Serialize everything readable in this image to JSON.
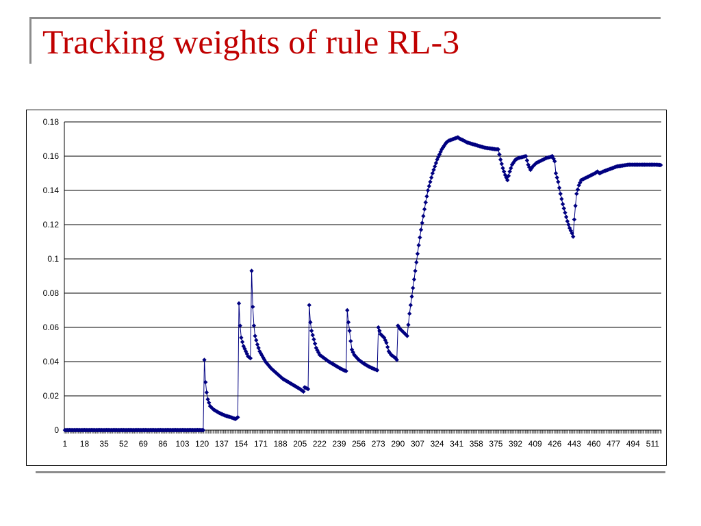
{
  "slide": {
    "title": "Tracking weights of  rule RL-3"
  },
  "colors": {
    "title": "#c00000",
    "series": "#000080",
    "gridlines": "#000000",
    "frame": "#8c8c8c"
  },
  "chart_data": {
    "type": "line",
    "title": "",
    "xlabel": "",
    "ylabel": "",
    "marker": "diamond",
    "grid": "horizontal",
    "legend": "none",
    "n_points": 518,
    "xlim": [
      1,
      518
    ],
    "ylim": [
      0,
      0.18
    ],
    "y_ticks": [
      "0",
      "0.02",
      "0.04",
      "0.06",
      "0.08",
      "0.1",
      "0.12",
      "0.14",
      "0.16",
      "0.18"
    ],
    "y_tick_values": [
      0,
      0.02,
      0.04,
      0.06,
      0.08,
      0.1,
      0.12,
      0.14,
      0.16,
      0.18
    ],
    "x_tick_labels": [
      "1",
      "18",
      "35",
      "52",
      "69",
      "86",
      "103",
      "120",
      "137",
      "154",
      "171",
      "188",
      "205",
      "222",
      "239",
      "256",
      "273",
      "290",
      "307",
      "324",
      "341",
      "358",
      "375",
      "392",
      "409",
      "426",
      "443",
      "460",
      "477",
      "494",
      "511"
    ],
    "series_points": [
      [
        1,
        0
      ],
      [
        121,
        0
      ],
      [
        122,
        0.041
      ],
      [
        123,
        0.028
      ],
      [
        124,
        0.022
      ],
      [
        125,
        0.018
      ],
      [
        127,
        0.014
      ],
      [
        130,
        0.012
      ],
      [
        135,
        0.01
      ],
      [
        140,
        0.0085
      ],
      [
        145,
        0.0075
      ],
      [
        149,
        0.0065
      ],
      [
        151,
        0.0075
      ],
      [
        152,
        0.074
      ],
      [
        153,
        0.061
      ],
      [
        154,
        0.054
      ],
      [
        156,
        0.049
      ],
      [
        158,
        0.046
      ],
      [
        160,
        0.043
      ],
      [
        162,
        0.042
      ],
      [
        163,
        0.093
      ],
      [
        164,
        0.072
      ],
      [
        165,
        0.061
      ],
      [
        166,
        0.055
      ],
      [
        168,
        0.05
      ],
      [
        170,
        0.046
      ],
      [
        175,
        0.04
      ],
      [
        180,
        0.036
      ],
      [
        185,
        0.033
      ],
      [
        190,
        0.03
      ],
      [
        195,
        0.028
      ],
      [
        200,
        0.026
      ],
      [
        205,
        0.024
      ],
      [
        208,
        0.0225
      ],
      [
        209,
        0.025
      ],
      [
        212,
        0.024
      ],
      [
        213,
        0.073
      ],
      [
        214,
        0.063
      ],
      [
        215,
        0.058
      ],
      [
        217,
        0.053
      ],
      [
        219,
        0.048
      ],
      [
        222,
        0.044
      ],
      [
        226,
        0.042
      ],
      [
        230,
        0.04
      ],
      [
        235,
        0.038
      ],
      [
        240,
        0.036
      ],
      [
        243,
        0.035
      ],
      [
        245,
        0.0345
      ],
      [
        246,
        0.07
      ],
      [
        247,
        0.063
      ],
      [
        248,
        0.058
      ],
      [
        249,
        0.052
      ],
      [
        250,
        0.047
      ],
      [
        252,
        0.044
      ],
      [
        256,
        0.041
      ],
      [
        260,
        0.039
      ],
      [
        265,
        0.037
      ],
      [
        270,
        0.0355
      ],
      [
        272,
        0.035
      ],
      [
        273,
        0.06
      ],
      [
        275,
        0.056
      ],
      [
        278,
        0.054
      ],
      [
        280,
        0.051
      ],
      [
        282,
        0.046
      ],
      [
        284,
        0.044
      ],
      [
        286,
        0.043
      ],
      [
        288,
        0.042
      ],
      [
        289,
        0.041
      ],
      [
        290,
        0.061
      ],
      [
        292,
        0.059
      ],
      [
        295,
        0.057
      ],
      [
        298,
        0.055
      ],
      [
        300,
        0.068
      ],
      [
        302,
        0.078
      ],
      [
        304,
        0.088
      ],
      [
        306,
        0.098
      ],
      [
        308,
        0.108
      ],
      [
        310,
        0.117
      ],
      [
        312,
        0.125
      ],
      [
        314,
        0.133
      ],
      [
        316,
        0.14
      ],
      [
        318,
        0.145
      ],
      [
        320,
        0.15
      ],
      [
        322,
        0.154
      ],
      [
        324,
        0.158
      ],
      [
        326,
        0.161
      ],
      [
        328,
        0.164
      ],
      [
        330,
        0.166
      ],
      [
        332,
        0.168
      ],
      [
        334,
        0.169
      ],
      [
        336,
        0.1695
      ],
      [
        338,
        0.17
      ],
      [
        340,
        0.1705
      ],
      [
        342,
        0.171
      ],
      [
        344,
        0.17
      ],
      [
        346,
        0.1695
      ],
      [
        350,
        0.168
      ],
      [
        355,
        0.167
      ],
      [
        360,
        0.166
      ],
      [
        365,
        0.165
      ],
      [
        370,
        0.1645
      ],
      [
        375,
        0.164
      ],
      [
        377,
        0.164
      ],
      [
        379,
        0.158
      ],
      [
        381,
        0.153
      ],
      [
        383,
        0.149
      ],
      [
        385,
        0.146
      ],
      [
        387,
        0.151
      ],
      [
        389,
        0.155
      ],
      [
        392,
        0.158
      ],
      [
        395,
        0.159
      ],
      [
        398,
        0.1595
      ],
      [
        401,
        0.16
      ],
      [
        403,
        0.155
      ],
      [
        405,
        0.152
      ],
      [
        407,
        0.154
      ],
      [
        410,
        0.156
      ],
      [
        413,
        0.157
      ],
      [
        416,
        0.158
      ],
      [
        419,
        0.159
      ],
      [
        422,
        0.1595
      ],
      [
        424,
        0.16
      ],
      [
        426,
        0.157
      ],
      [
        427,
        0.15
      ],
      [
        429,
        0.145
      ],
      [
        431,
        0.138
      ],
      [
        433,
        0.132
      ],
      [
        435,
        0.127
      ],
      [
        437,
        0.122
      ],
      [
        439,
        0.118
      ],
      [
        441,
        0.115
      ],
      [
        442,
        0.113
      ],
      [
        443,
        0.123
      ],
      [
        444,
        0.131
      ],
      [
        445,
        0.138
      ],
      [
        447,
        0.143
      ],
      [
        449,
        0.146
      ],
      [
        452,
        0.147
      ],
      [
        455,
        0.148
      ],
      [
        458,
        0.149
      ],
      [
        461,
        0.15
      ],
      [
        463,
        0.151
      ],
      [
        465,
        0.15
      ],
      [
        468,
        0.151
      ],
      [
        472,
        0.152
      ],
      [
        476,
        0.153
      ],
      [
        480,
        0.154
      ],
      [
        485,
        0.1545
      ],
      [
        490,
        0.155
      ],
      [
        495,
        0.155
      ],
      [
        500,
        0.155
      ],
      [
        505,
        0.155
      ],
      [
        510,
        0.155
      ],
      [
        514,
        0.155
      ],
      [
        518,
        0.1548
      ]
    ]
  }
}
